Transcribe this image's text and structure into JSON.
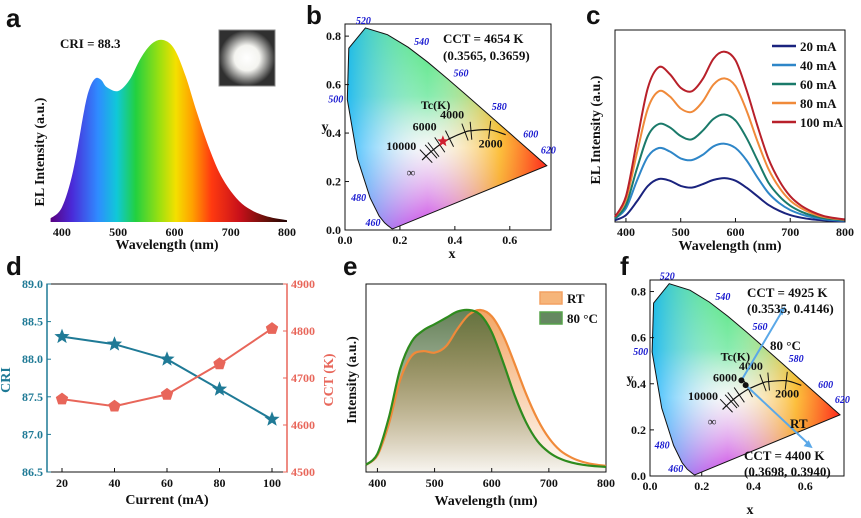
{
  "panels": {
    "a": {
      "label": "a",
      "cri_text": "CRI = 88.3",
      "xlabel": "Wavelength (nm)",
      "ylabel": "EL Intensity (a.u.)",
      "xticks": [
        "400",
        "500",
        "600",
        "700",
        "800"
      ]
    },
    "b": {
      "label": "b",
      "cct_text": "CCT = 4654 K",
      "coord_text": "(0.3565, 0.3659)",
      "xlabel": "x",
      "ylabel": "y",
      "xticks": [
        "0.0",
        "0.2",
        "0.4",
        "0.6"
      ],
      "yticks": [
        "0.0",
        "0.2",
        "0.4",
        "0.6",
        "0.8"
      ],
      "tc_label": "Tc(K)",
      "temps": [
        "10000",
        "6000",
        "4000",
        "2000"
      ],
      "infinity": "∞",
      "wavelengths": [
        "460",
        "480",
        "500",
        "520",
        "540",
        "560",
        "580",
        "600",
        "620"
      ]
    },
    "c": {
      "label": "c",
      "xlabel": "Wavelength (nm)",
      "ylabel": "EL Intensity (a.u.)",
      "xticks": [
        "400",
        "500",
        "600",
        "700",
        "800"
      ]
    },
    "d": {
      "label": "d",
      "xlabel": "Current (mA)",
      "ylabel_left": "CRI",
      "ylabel_right": "CCT (K)",
      "left_color": "#1f7a96",
      "right_color": "#e8665a"
    },
    "e": {
      "label": "e",
      "xlabel": "Wavelength (nm)",
      "ylabel": "Intensity (a.u.)",
      "xticks": [
        "400",
        "500",
        "600",
        "700",
        "800"
      ]
    },
    "f": {
      "label": "f",
      "cct_80c_text": "CCT = 4925 K",
      "coord_80c_text": "(0.3535, 0.4146)",
      "label_80c": "80 °C",
      "cct_rt_text": "CCT = 4400 K",
      "coord_rt_text": "(0.3698, 0.3940)",
      "label_rt": "RT",
      "xlabel": "x",
      "ylabel": "y",
      "xticks": [
        "0.0",
        "0.2",
        "0.4",
        "0.6"
      ],
      "yticks": [
        "0.0",
        "0.2",
        "0.4",
        "0.6",
        "0.8"
      ],
      "tc_label": "Tc(K)",
      "temps": [
        "10000",
        "6000",
        "4000",
        "2000"
      ],
      "infinity": "∞",
      "wavelengths": [
        "460",
        "480",
        "500",
        "520",
        "540",
        "560",
        "580",
        "600",
        "620"
      ]
    }
  },
  "chart_data": [
    {
      "panel": "a",
      "type": "area",
      "title": "CRI = 88.3",
      "xlabel": "Wavelength (nm)",
      "ylabel": "EL Intensity (a.u.)",
      "xlim": [
        370,
        800
      ],
      "x": [
        380,
        400,
        420,
        440,
        450,
        460,
        470,
        480,
        500,
        520,
        540,
        560,
        580,
        600,
        620,
        640,
        660,
        680,
        700,
        720,
        740,
        760,
        780,
        800
      ],
      "y": [
        0.02,
        0.08,
        0.28,
        0.62,
        0.74,
        0.79,
        0.78,
        0.74,
        0.72,
        0.78,
        0.9,
        0.98,
        1.0,
        0.95,
        0.8,
        0.6,
        0.42,
        0.27,
        0.17,
        0.1,
        0.06,
        0.035,
        0.02,
        0.01
      ]
    },
    {
      "panel": "b",
      "type": "scatter",
      "title": "CCT = 4654 K",
      "xlabel": "x",
      "ylabel": "y",
      "xlim": [
        0.0,
        0.75
      ],
      "ylim": [
        0.0,
        0.85
      ],
      "series": [
        {
          "name": "(0.3565, 0.3659)",
          "x": [
            0.3565
          ],
          "y": [
            0.3659
          ]
        }
      ]
    },
    {
      "panel": "c",
      "type": "line",
      "xlabel": "Wavelength (nm)",
      "ylabel": "EL Intensity (a.u.)",
      "xlim": [
        380,
        800
      ],
      "x": [
        380,
        400,
        420,
        440,
        460,
        480,
        500,
        520,
        540,
        560,
        580,
        600,
        620,
        640,
        660,
        680,
        700,
        720,
        740,
        760,
        780,
        800
      ],
      "series": [
        {
          "name": "20 mA",
          "color": "#1a237e",
          "values": [
            0.01,
            0.04,
            0.12,
            0.21,
            0.25,
            0.24,
            0.21,
            0.2,
            0.22,
            0.245,
            0.255,
            0.24,
            0.2,
            0.15,
            0.1,
            0.065,
            0.04,
            0.025,
            0.015,
            0.01,
            0.006,
            0.004
          ]
        },
        {
          "name": "40 mA",
          "color": "#2e86c8",
          "values": [
            0.02,
            0.08,
            0.24,
            0.38,
            0.43,
            0.41,
            0.37,
            0.36,
            0.39,
            0.44,
            0.455,
            0.43,
            0.36,
            0.26,
            0.17,
            0.11,
            0.07,
            0.045,
            0.028,
            0.017,
            0.011,
            0.007
          ]
        },
        {
          "name": "60 mA",
          "color": "#1a7a6a",
          "values": [
            0.02,
            0.1,
            0.31,
            0.5,
            0.57,
            0.55,
            0.5,
            0.48,
            0.53,
            0.6,
            0.625,
            0.59,
            0.49,
            0.36,
            0.23,
            0.15,
            0.095,
            0.06,
            0.038,
            0.023,
            0.015,
            0.01
          ]
        },
        {
          "name": "80 mA",
          "color": "#f08a3a",
          "values": [
            0.03,
            0.13,
            0.4,
            0.66,
            0.76,
            0.73,
            0.66,
            0.64,
            0.7,
            0.8,
            0.835,
            0.79,
            0.65,
            0.47,
            0.31,
            0.2,
            0.125,
            0.08,
            0.05,
            0.03,
            0.02,
            0.013
          ]
        },
        {
          "name": "100 mA",
          "color": "#b8202a",
          "values": [
            0.03,
            0.15,
            0.47,
            0.78,
            0.9,
            0.86,
            0.78,
            0.76,
            0.83,
            0.95,
            0.99,
            0.94,
            0.77,
            0.56,
            0.37,
            0.24,
            0.15,
            0.095,
            0.06,
            0.036,
            0.023,
            0.015
          ]
        }
      ]
    },
    {
      "panel": "d",
      "type": "line",
      "xlabel": "Current (mA)",
      "categories": [
        "20",
        "40",
        "60",
        "80",
        "100"
      ],
      "y_left": {
        "label": "CRI",
        "ylim": [
          86.5,
          89.0
        ],
        "ticks": [
          "86.5",
          "87.0",
          "87.5",
          "88.0",
          "88.5",
          "89.0"
        ]
      },
      "y_right": {
        "label": "CCT (K)",
        "ylim": [
          4500,
          4900
        ],
        "ticks": [
          "4500",
          "4600",
          "4700",
          "4800",
          "4900"
        ]
      },
      "series": [
        {
          "name": "CRI",
          "axis": "left",
          "marker": "star",
          "color": "#1f7a96",
          "values": [
            88.3,
            88.2,
            88.0,
            87.6,
            87.2
          ]
        },
        {
          "name": "CCT (K)",
          "axis": "right",
          "marker": "pentagon",
          "color": "#e8665a",
          "values": [
            4655,
            4640,
            4665,
            4730,
            4805
          ]
        }
      ]
    },
    {
      "panel": "e",
      "type": "area",
      "xlabel": "Wavelength (nm)",
      "ylabel": "Intensity (a.u.)",
      "xlim": [
        380,
        800
      ],
      "x": [
        380,
        400,
        420,
        440,
        460,
        480,
        500,
        520,
        540,
        560,
        580,
        600,
        620,
        640,
        660,
        680,
        700,
        720,
        740,
        760,
        780,
        800
      ],
      "series": [
        {
          "name": "RT",
          "color": "#f08a3a",
          "fill": "#f5a35a",
          "values": [
            0.02,
            0.08,
            0.28,
            0.56,
            0.71,
            0.74,
            0.73,
            0.77,
            0.88,
            0.97,
            1.0,
            0.96,
            0.84,
            0.66,
            0.47,
            0.31,
            0.19,
            0.11,
            0.065,
            0.038,
            0.022,
            0.013
          ]
        },
        {
          "name": "80 °C",
          "color": "#2e8b1e",
          "fill": "#3f6b3a",
          "values": [
            0.02,
            0.09,
            0.32,
            0.63,
            0.8,
            0.87,
            0.91,
            0.95,
            0.99,
            1.0,
            0.97,
            0.86,
            0.67,
            0.46,
            0.29,
            0.17,
            0.1,
            0.058,
            0.034,
            0.02,
            0.012,
            0.007
          ]
        }
      ]
    },
    {
      "panel": "f",
      "type": "scatter",
      "xlabel": "x",
      "ylabel": "y",
      "xlim": [
        0.0,
        0.75
      ],
      "ylim": [
        0.0,
        0.85
      ],
      "series": [
        {
          "name": "80 °C",
          "x": [
            0.3535
          ],
          "y": [
            0.4146
          ]
        },
        {
          "name": "RT",
          "x": [
            0.3698
          ],
          "y": [
            0.394
          ]
        }
      ]
    }
  ]
}
